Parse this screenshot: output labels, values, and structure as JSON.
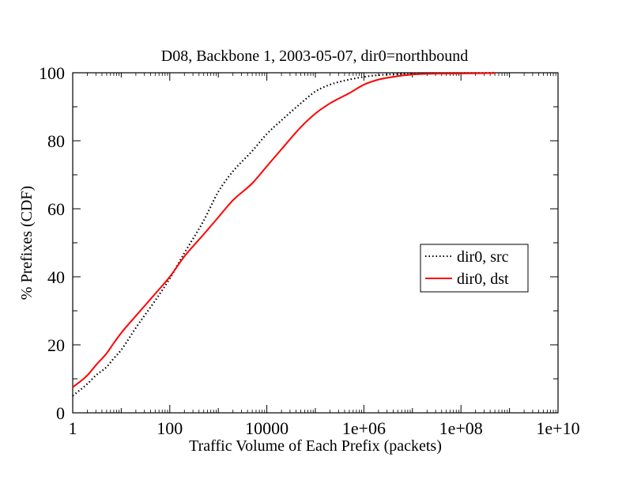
{
  "chart_data": {
    "type": "line",
    "title": "D08, Backbone 1, 2003-05-07, dir0=northbound",
    "xlabel": "Traffic Volume of Each Prefix (packets)",
    "ylabel": "% Prefixes (CDF)",
    "x_scale": "log",
    "xlim": [
      1,
      10000000000
    ],
    "ylim": [
      0,
      100
    ],
    "x_ticks": [
      1,
      100,
      10000,
      1000000,
      100000000,
      10000000000
    ],
    "x_tick_labels": [
      "1",
      "100",
      "10000",
      "1e+06",
      "1e+08",
      "1e+10"
    ],
    "y_ticks": [
      0,
      20,
      40,
      60,
      80,
      100
    ],
    "y_tick_labels": [
      "0",
      "20",
      "40",
      "60",
      "80",
      "100"
    ],
    "grid": false,
    "legend_position": "right",
    "series": [
      {
        "name": "dir0, src",
        "color": "#000000",
        "style": "dotted",
        "x": [
          1,
          2,
          3,
          5,
          7,
          10,
          20,
          50,
          100,
          200,
          500,
          1000,
          2000,
          5000,
          10000,
          20000,
          50000,
          100000,
          200000,
          500000,
          1000000,
          2000000,
          5000000,
          10000000,
          100000000,
          500000000
        ],
        "y": [
          5,
          8.5,
          11,
          13.5,
          16,
          18.5,
          25,
          33,
          39.5,
          47,
          56.5,
          65,
          71,
          77,
          82,
          86,
          91,
          94.5,
          96.5,
          98,
          98.8,
          99.3,
          99.6,
          99.8,
          99.9,
          100
        ]
      },
      {
        "name": "dir0, dst",
        "color": "#ff0000",
        "style": "solid",
        "x": [
          1,
          2,
          3,
          5,
          7,
          10,
          20,
          50,
          100,
          200,
          500,
          1000,
          2000,
          5000,
          10000,
          20000,
          50000,
          100000,
          200000,
          500000,
          1000000,
          2000000,
          5000000,
          10000000,
          100000000,
          500000000
        ],
        "y": [
          7.5,
          11,
          14,
          17.5,
          20.5,
          23.5,
          28.5,
          35,
          40,
          46,
          52.5,
          57.5,
          62.5,
          67.5,
          72.5,
          77.5,
          84,
          88,
          91,
          94,
          96.5,
          98,
          99,
          99.5,
          99.8,
          99.9
        ]
      }
    ]
  }
}
